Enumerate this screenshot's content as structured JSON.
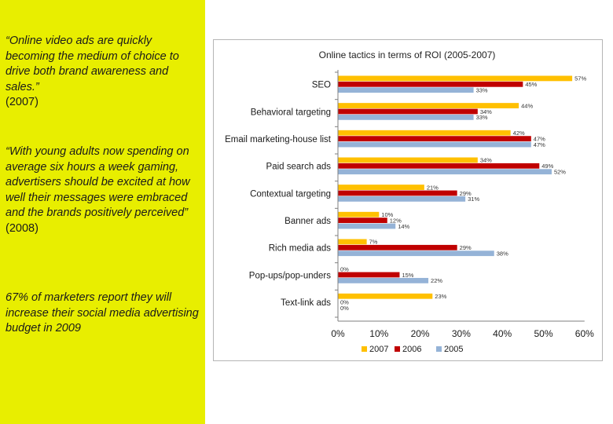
{
  "quotes": [
    {
      "text": "“Online video ads are quickly becoming the medium of choice to drive both brand awareness and sales.”",
      "year": "(2007)"
    },
    {
      "text": "“With young adults now spending on average six hours a week gaming, advertisers should be excited at how well their messages were embraced and the brands positively perceived”",
      "year": " (2008)"
    },
    {
      "text": "67% of marketers report they will increase their social media advertising budget in 2009",
      "year": ""
    }
  ],
  "colors": {
    "panel": "#e8ee00",
    "s2007": "#ffc000",
    "s2006": "#c00000",
    "s2005": "#95b3d7"
  },
  "chart_data": {
    "type": "bar",
    "orientation": "horizontal",
    "title": "Online tactics in terms of ROI (2005-2007)",
    "categories": [
      "SEO",
      "Behavioral targeting",
      "Email marketing-house list",
      "Paid search ads",
      "Contextual targeting",
      "Banner ads",
      "Rich media ads",
      "Pop-ups/pop-unders",
      "Text-link ads"
    ],
    "series": [
      {
        "name": "2007",
        "color": "#ffc000",
        "values": [
          57,
          44,
          42,
          34,
          21,
          10,
          7,
          0,
          23
        ],
        "labels": [
          "57%",
          "44%",
          "42%",
          "34%",
          "21%",
          "10%",
          "7%",
          "0%",
          "23%"
        ]
      },
      {
        "name": "2006",
        "color": "#c00000",
        "values": [
          45,
          34,
          47,
          49,
          29,
          12,
          29,
          15,
          0
        ],
        "labels": [
          "45%",
          "34%",
          "47%",
          "49%",
          "29%",
          "12%",
          "29%",
          "15%",
          "0%"
        ]
      },
      {
        "name": "2005",
        "color": "#95b3d7",
        "values": [
          33,
          33,
          47,
          52,
          31,
          14,
          38,
          22,
          0
        ],
        "labels": [
          "33%",
          "33%",
          "47%",
          "52%",
          "31%",
          "14%",
          "38%",
          "22%",
          "0%"
        ]
      }
    ],
    "xlim": [
      0,
      60
    ],
    "xticks": [
      "0%",
      "10%",
      "20%",
      "30%",
      "40%",
      "50%",
      "60%"
    ],
    "grid": false,
    "legend_position": "bottom"
  }
}
